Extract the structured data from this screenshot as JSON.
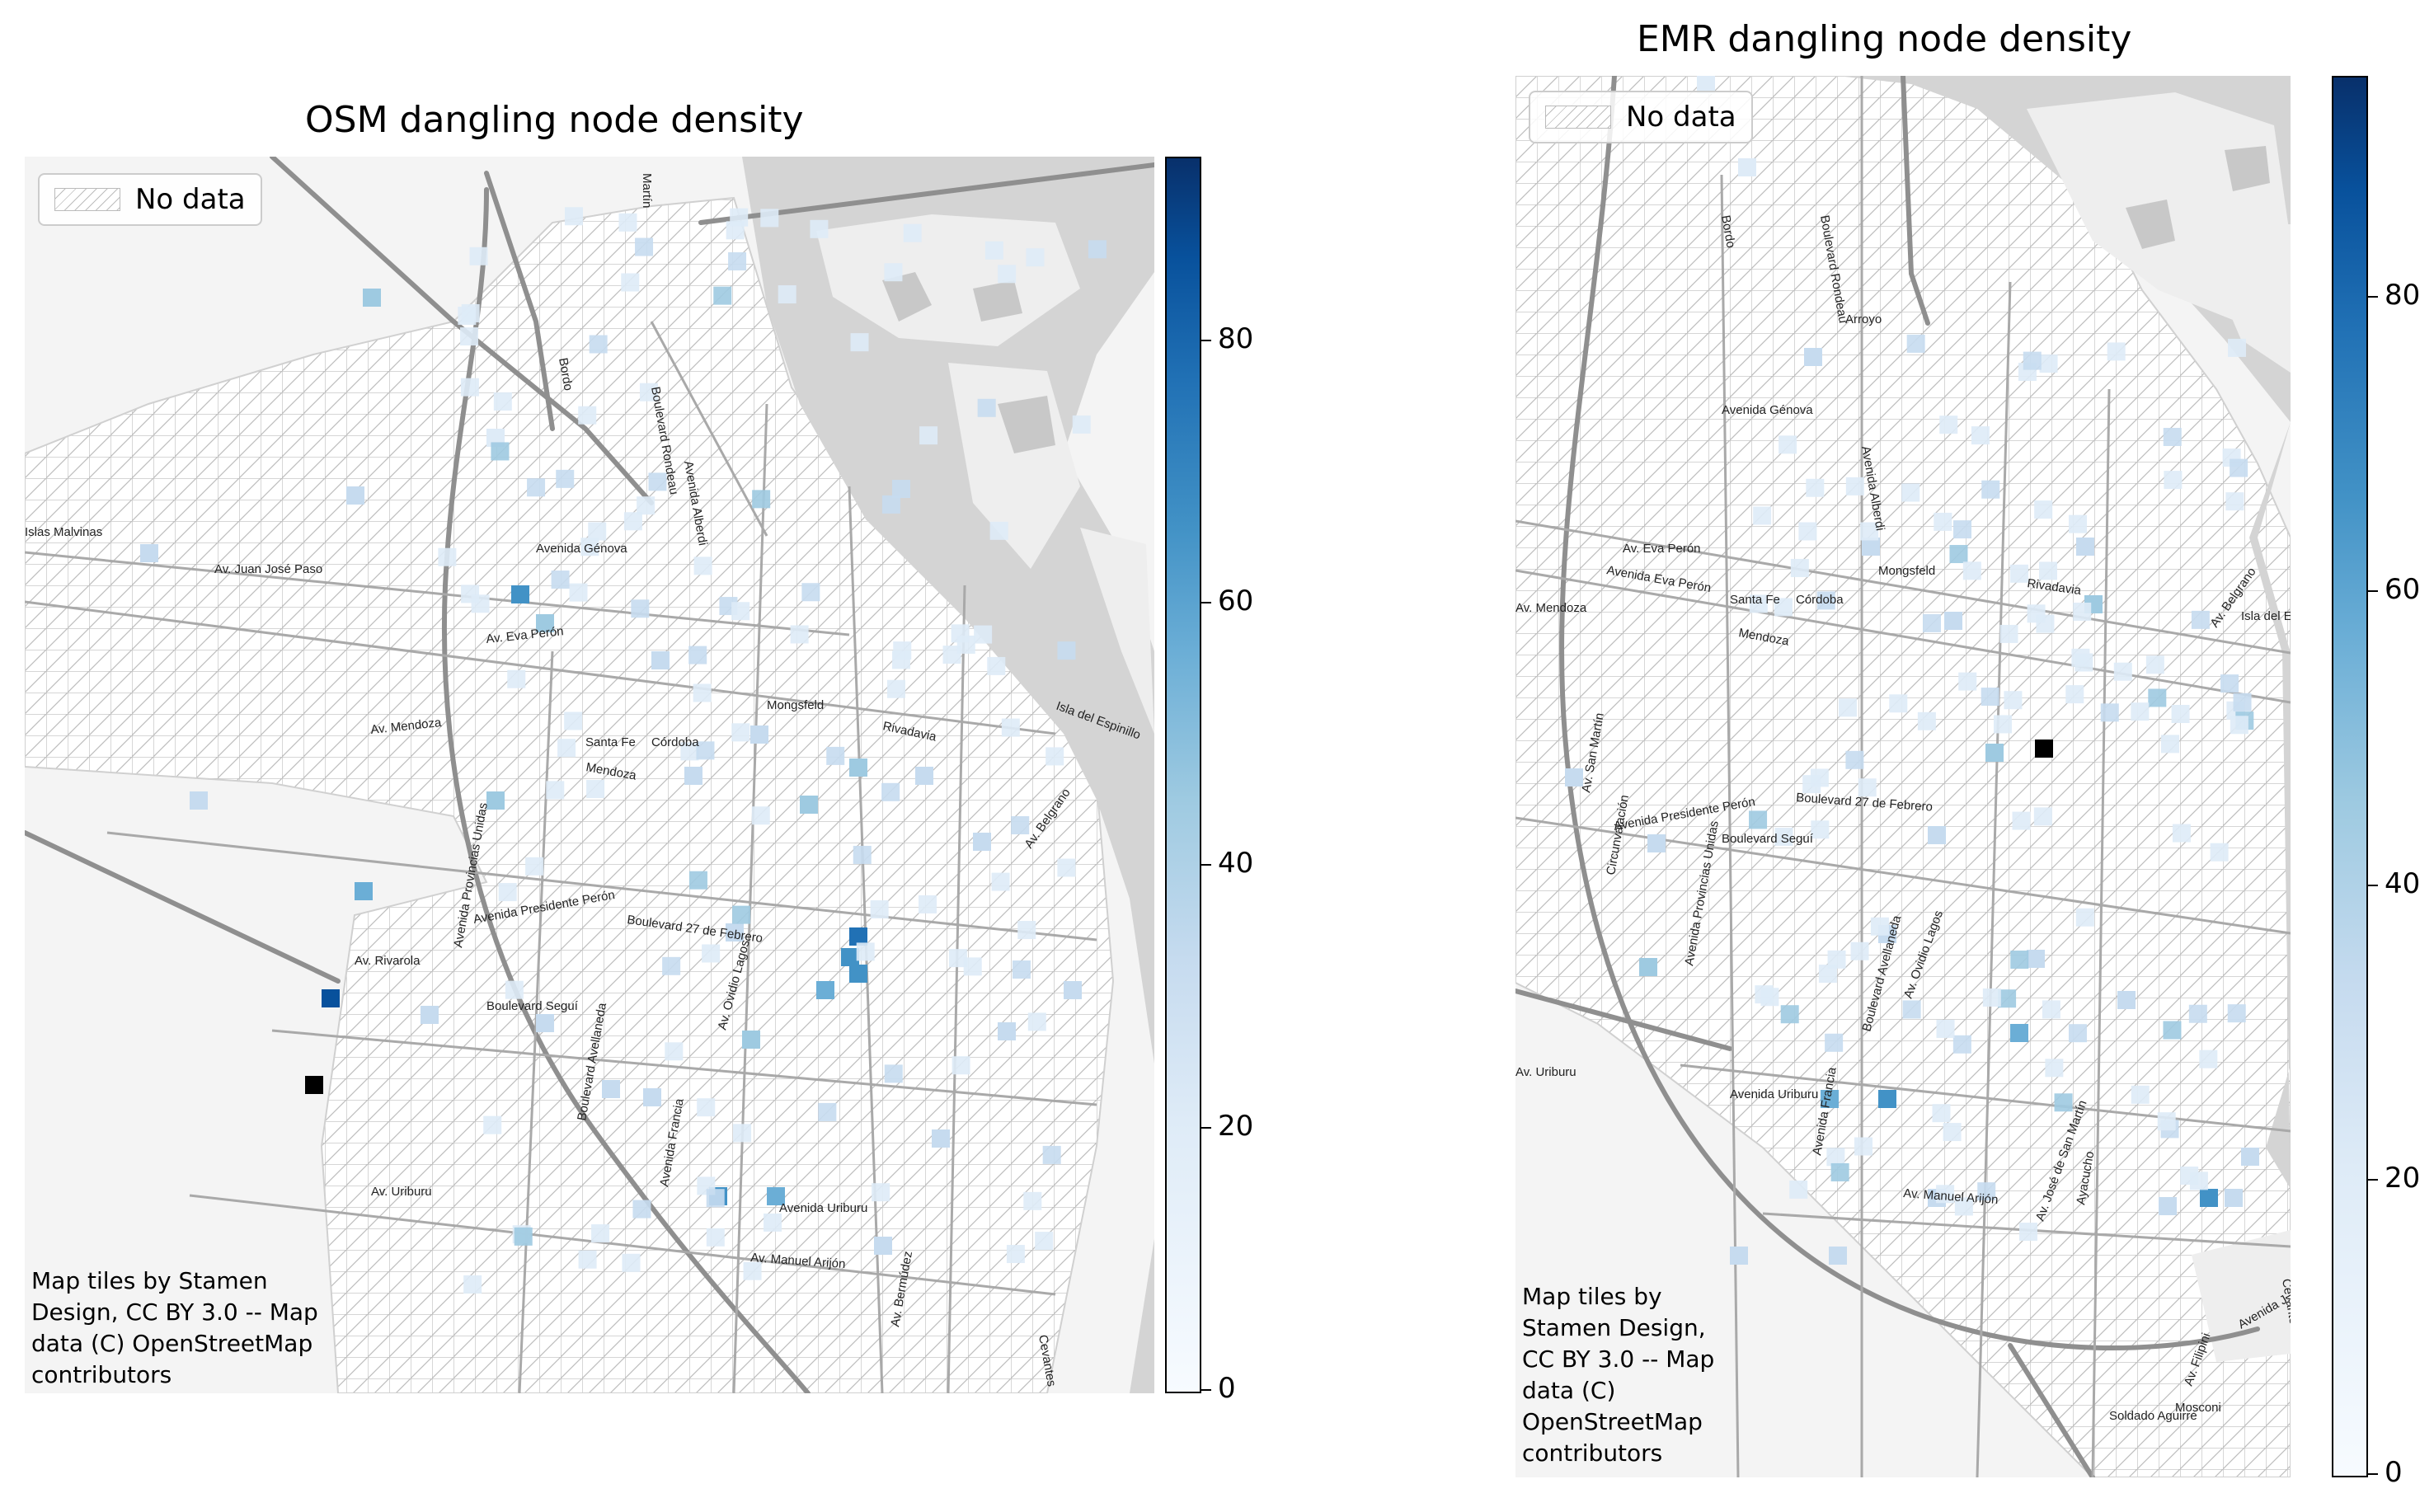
{
  "maps": [
    {
      "id": "osm",
      "title": "OSM dangling node density",
      "legend_label": "No data",
      "attribution": [
        "Map tiles by Stamen",
        "Design, CC BY 3.0 -- Map",
        "data (C) OpenStreetMap",
        "contributors"
      ],
      "colorbar": {
        "min": 0,
        "max": 94,
        "ticks": [
          0,
          20,
          40,
          60,
          80
        ]
      },
      "streets": [
        "Av. Juan José Paso",
        "Avenida Génova",
        "Av. Eva Perón",
        "Av. Mendoza",
        "Santa Fe",
        "Córdoba",
        "Mendoza",
        "Mongsfeld",
        "Rivadavia",
        "Boulevard 27 de Febrero",
        "Boulevard Seguí",
        "Avenida Presidente Perón",
        "Av. Rivarola",
        "Av. Uriburu",
        "Avenida Uriburu",
        "Av. Manuel Arijón",
        "Boulevard Rondeau",
        "Avenida Alberdi",
        "Av. Ovidio Lagos",
        "Avenida Francia",
        "Boulevard Avellaneda",
        "Avenida Provincias Unidas",
        "Av. Belgrano",
        "Av. Bermúdez",
        "Isla del Espinillo",
        "Islas Malvinas",
        "Bordo",
        "Martín",
        "Cevantes"
      ]
    },
    {
      "id": "emr",
      "title": "EMR dangling node density",
      "legend_label": "No data",
      "attribution": [
        "Map tiles by",
        "Stamen Design,",
        "CC BY 3.0 -- Map",
        "data (C)",
        "OpenStreetMap",
        "contributors"
      ],
      "colorbar": {
        "min": 0,
        "max": 95,
        "ticks": [
          0,
          20,
          40,
          60,
          80
        ]
      },
      "streets": [
        "Avenida Génova",
        "Av. Eva Perón",
        "Avenida Eva Perón",
        "Av. Mendoza",
        "Santa Fe",
        "Córdoba",
        "Mendoza",
        "Mongsfeld",
        "Rivadavia",
        "Boulevard 27 de Febrero",
        "Boulevard Seguí",
        "Avenida Presidente Perón",
        "Av. Uriburu",
        "Avenida Uriburu",
        "Av. Manuel Arijón",
        "Av. Ovidio Lagos",
        "Boulevard Rondeau",
        "Avenida Alberdi",
        "Avenida Francia",
        "Boulevard Avellaneda",
        "Avenida Provincias Unidas",
        "Circunvalación",
        "Av. San Martín",
        "Av. José de San Martín",
        "Ayacucho",
        "Av. Belgrano",
        "Mosconi",
        "Soldado Aguirre",
        "Av. Filipini",
        "Avenida J. D. Perón",
        "Cevantes",
        "Isla del Espinillo",
        "Bordo",
        "Arroyo"
      ]
    }
  ],
  "colors": {
    "scale": [
      "#f7fbff",
      "#deebf7",
      "#c6dbef",
      "#9ecae1",
      "#6baed6",
      "#4292c6",
      "#2171b5",
      "#08519c",
      "#08306b"
    ],
    "river": "#d4d4d4",
    "road": "#8f8f8f",
    "hatch": "#bdbdbd"
  }
}
